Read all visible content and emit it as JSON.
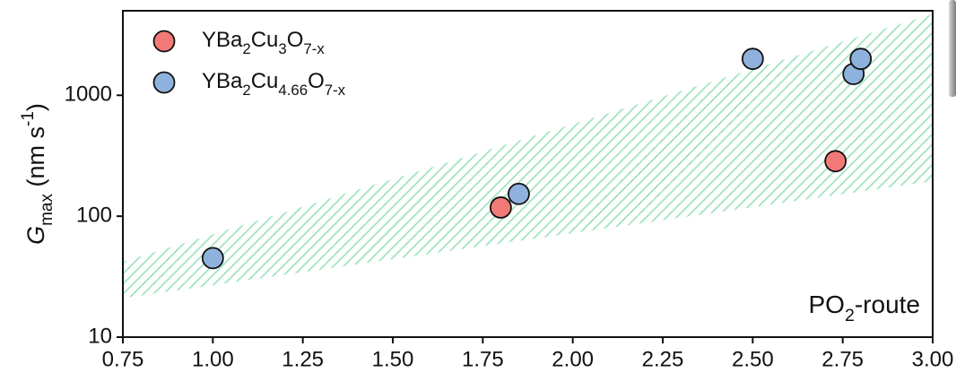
{
  "chart_data": {
    "type": "scatter",
    "y_label": "Gmax (nm s-1)",
    "annotation": "PO2-route",
    "y_scale": "log",
    "xlim": [
      0.75,
      3.0
    ],
    "ylim": [
      10,
      5000
    ],
    "xticks": [
      {
        "value": 0.75,
        "label": "0.75"
      },
      {
        "value": 1.0,
        "label": "1.00"
      },
      {
        "value": 1.25,
        "label": "1.25"
      },
      {
        "value": 1.5,
        "label": "1.50"
      },
      {
        "value": 1.75,
        "label": "1.75"
      },
      {
        "value": 2.0,
        "label": "2.00"
      },
      {
        "value": 2.25,
        "label": "2.25"
      },
      {
        "value": 2.5,
        "label": "2.50"
      },
      {
        "value": 2.75,
        "label": "2.75"
      },
      {
        "value": 3.0,
        "label": "3.00"
      }
    ],
    "yticks": [
      10,
      100,
      1000
    ],
    "legend": "upper left",
    "band": {
      "color": "#9fe3c0",
      "x": [
        0.75,
        3.0
      ],
      "upper": [
        42,
        4700
      ],
      "lower": [
        21,
        195
      ]
    },
    "series": [
      {
        "name": "YBa2Cu3O7-x",
        "color": "#f27a76",
        "x": [
          1.8,
          2.73
        ],
        "values": [
          118,
          285
        ]
      },
      {
        "name": "YBa2Cu4.66O7-x",
        "color": "#8fb1dd",
        "x": [
          1.0,
          1.85,
          2.5,
          2.78,
          2.8
        ],
        "values": [
          45,
          153,
          2000,
          1500,
          2000
        ]
      }
    ]
  }
}
